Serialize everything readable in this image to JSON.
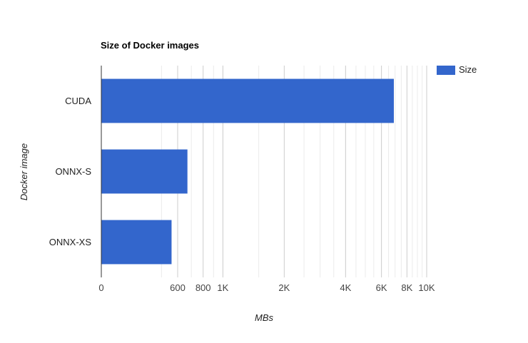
{
  "chart_data": {
    "type": "bar",
    "orientation": "horizontal",
    "title": "Size of Docker images",
    "xlabel": "MBs",
    "ylabel": "Docker image",
    "x_scale": "log",
    "categories": [
      "CUDA",
      "ONNX-S",
      "ONNX-XS"
    ],
    "series": [
      {
        "name": "Size",
        "color": "#3366cc",
        "values": [
          6900,
          670,
          560
        ]
      }
    ],
    "tick_labels": [
      {
        "value": 0,
        "label": "0"
      },
      {
        "value": 600,
        "label": "600"
      },
      {
        "value": 800,
        "label": "800"
      },
      {
        "value": 1000,
        "label": "1K"
      },
      {
        "value": 2000,
        "label": "2K"
      },
      {
        "value": 4000,
        "label": "4K"
      },
      {
        "value": 6000,
        "label": "6K"
      },
      {
        "value": 8000,
        "label": "8K"
      },
      {
        "value": 10000,
        "label": "10K"
      }
    ],
    "minor_gridlines": [
      500,
      600,
      700,
      800,
      900,
      1000,
      1500,
      2000,
      2500,
      3000,
      3500,
      4000,
      4500,
      5000,
      5500,
      6000,
      6500,
      7000,
      7500,
      8000,
      8500,
      9000,
      9500,
      10000
    ],
    "xlim": [
      300,
      10000
    ],
    "grid": true,
    "legend": "top-right"
  }
}
